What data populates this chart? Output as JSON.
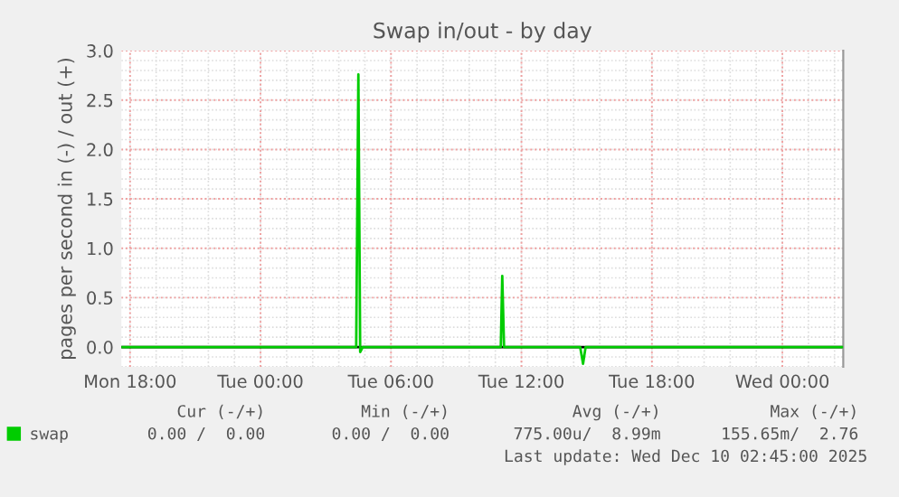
{
  "chart_data": {
    "type": "line",
    "title": "Swap in/out - by day",
    "ylabel": "pages per second in (-) / out (+)",
    "series": [
      {
        "name": "swap",
        "color": "#00cc00",
        "x": [
          "2025-12-08T17:36",
          "2025-12-09T04:24",
          "2025-12-09T04:30",
          "2025-12-09T04:35",
          "2025-12-09T04:42",
          "2025-12-09T11:03",
          "2025-12-09T11:07",
          "2025-12-09T11:12",
          "2025-12-09T14:42",
          "2025-12-09T14:50",
          "2025-12-09T14:57",
          "2025-12-10T02:45"
        ],
        "values": [
          0,
          0,
          2.76,
          -0.05,
          0,
          0,
          0.72,
          0,
          0,
          -0.17,
          0,
          0
        ]
      }
    ],
    "xlim": [
      "2025-12-08T17:36",
      "2025-12-10T02:48"
    ],
    "xticks": [
      {
        "value": "2025-12-08T18:00",
        "label": "Mon 18:00"
      },
      {
        "value": "2025-12-09T00:00",
        "label": "Tue 00:00"
      },
      {
        "value": "2025-12-09T06:00",
        "label": "Tue 06:00"
      },
      {
        "value": "2025-12-09T12:00",
        "label": "Tue 12:00"
      },
      {
        "value": "2025-12-09T18:00",
        "label": "Tue 18:00"
      },
      {
        "value": "2025-12-10T00:00",
        "label": "Wed 00:00"
      }
    ],
    "ylim": [
      -0.2,
      3.0
    ],
    "yticks": [
      {
        "value": 0,
        "label": "0.0"
      },
      {
        "value": 0.5,
        "label": "0.5"
      },
      {
        "value": 1,
        "label": "1.0"
      },
      {
        "value": 1.5,
        "label": "1.5"
      },
      {
        "value": 2,
        "label": "2.0"
      },
      {
        "value": 2.5,
        "label": "2.5"
      },
      {
        "value": 3,
        "label": "3.0"
      }
    ],
    "ref_lines": [
      {
        "axis": "y",
        "value": 0,
        "color": "#000000"
      }
    ],
    "grid": true,
    "legend": "bottom",
    "marker": "none",
    "line_style": "solid",
    "annotations": [
      "Cur (-/+)",
      "Min (-/+)",
      "Avg (-/+)",
      "Max (-/+)",
      "0.00 /  0.00",
      "0.00 /  0.00",
      "775.00u/  8.99m",
      "155.65m/  2.76",
      "Last update: Wed Dec 10 02:45:00 2025"
    ]
  }
}
